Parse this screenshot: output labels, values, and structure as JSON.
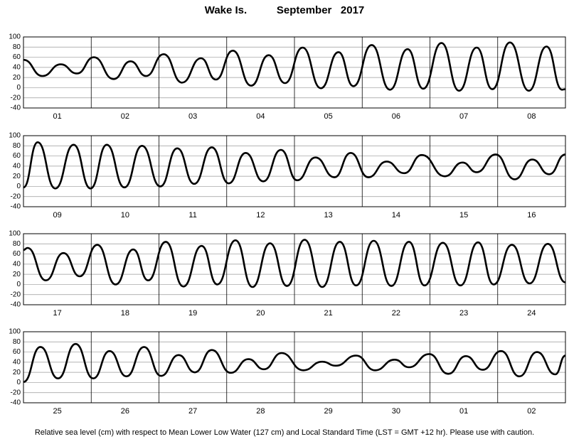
{
  "title": "Wake Is.          September   2017",
  "footnote": "Relative sea level (cm) with respect to Mean Lower Low Water (127 cm) and Local Standard Time (LST = GMT +12 hr). Please use with caution.",
  "chart_data": [
    {
      "type": "line",
      "categories": [
        "01",
        "02",
        "03",
        "04",
        "05",
        "06",
        "07",
        "08"
      ],
      "xlim": [
        0,
        8
      ],
      "ylim": [
        -40,
        100
      ],
      "yticks": [
        -40,
        -20,
        0,
        20,
        40,
        60,
        80,
        100
      ],
      "grid": true,
      "color": "#000000",
      "x": [
        0,
        0.28,
        0.55,
        0.79,
        1.04,
        1.33,
        1.58,
        1.81,
        2.07,
        2.34,
        2.62,
        2.84,
        3.09,
        3.36,
        3.62,
        3.86,
        4.12,
        4.39,
        4.65,
        4.87,
        5.14,
        5.41,
        5.67,
        5.9,
        6.17,
        6.43,
        6.69,
        6.92,
        7.18,
        7.46,
        7.72,
        7.95,
        8
      ],
      "values": [
        55,
        23,
        46,
        28,
        60,
        17,
        52,
        23,
        66,
        10,
        58,
        16,
        73,
        4,
        64,
        9,
        79,
        -1,
        70,
        3,
        84,
        -4,
        76,
        -2,
        88,
        -6,
        79,
        -3,
        89,
        -6,
        81,
        -4,
        -3
      ]
    },
    {
      "type": "line",
      "categories": [
        "09",
        "10",
        "11",
        "12",
        "13",
        "14",
        "15",
        "16"
      ],
      "xlim": [
        0,
        8
      ],
      "ylim": [
        -40,
        100
      ],
      "yticks": [
        -40,
        -20,
        0,
        20,
        40,
        60,
        80,
        100
      ],
      "grid": true,
      "color": "#000000",
      "x": [
        0,
        0.21,
        0.47,
        0.74,
        0.99,
        1.23,
        1.49,
        1.75,
        2.02,
        2.27,
        2.52,
        2.78,
        3.03,
        3.28,
        3.54,
        3.8,
        4.04,
        4.31,
        4.59,
        4.83,
        5.09,
        5.36,
        5.62,
        5.88,
        6.22,
        6.48,
        6.69,
        6.97,
        7.25,
        7.51,
        7.76,
        8
      ],
      "values": [
        -2,
        87,
        -4,
        82,
        -4,
        82,
        -2,
        80,
        0,
        75,
        5,
        77,
        6,
        66,
        10,
        72,
        12,
        57,
        18,
        66,
        18,
        49,
        26,
        62,
        20,
        47,
        28,
        63,
        14,
        53,
        24,
        63
      ]
    },
    {
      "type": "line",
      "categories": [
        "17",
        "18",
        "19",
        "20",
        "21",
        "22",
        "23",
        "24"
      ],
      "xlim": [
        0,
        8
      ],
      "ylim": [
        -40,
        100
      ],
      "yticks": [
        -40,
        -20,
        0,
        20,
        40,
        60,
        80,
        100
      ],
      "grid": true,
      "color": "#000000",
      "x": [
        0,
        0.06,
        0.33,
        0.59,
        0.83,
        1.09,
        1.36,
        1.62,
        1.84,
        2.1,
        2.36,
        2.63,
        2.86,
        3.13,
        3.38,
        3.64,
        3.89,
        4.15,
        4.41,
        4.67,
        4.91,
        5.17,
        5.43,
        5.69,
        5.92,
        6.19,
        6.45,
        6.71,
        6.94,
        7.21,
        7.47,
        7.74,
        8
      ],
      "values": [
        68,
        72,
        8,
        62,
        16,
        78,
        0,
        69,
        8,
        84,
        -4,
        76,
        0,
        87,
        -5,
        81,
        -3,
        88,
        -5,
        84,
        -2,
        86,
        -3,
        84,
        -2,
        82,
        -2,
        83,
        0,
        78,
        2,
        80,
        4
      ]
    },
    {
      "type": "line",
      "categories": [
        "25",
        "26",
        "27",
        "28",
        "29",
        "30",
        "01",
        "02"
      ],
      "xlim": [
        0,
        8
      ],
      "ylim": [
        -40,
        100
      ],
      "yticks": [
        -40,
        -20,
        0,
        20,
        40,
        60,
        80,
        100
      ],
      "grid": true,
      "color": "#000000",
      "x": [
        0,
        0.25,
        0.51,
        0.77,
        1.03,
        1.27,
        1.52,
        1.78,
        2.03,
        2.29,
        2.53,
        2.78,
        3.06,
        3.32,
        3.55,
        3.81,
        4.13,
        4.41,
        4.61,
        4.91,
        5.19,
        5.48,
        5.69,
        5.99,
        6.27,
        6.53,
        6.78,
        7.05,
        7.32,
        7.58,
        7.85,
        8
      ],
      "values": [
        1,
        70,
        8,
        76,
        8,
        62,
        12,
        70,
        13,
        54,
        20,
        64,
        19,
        46,
        26,
        58,
        24,
        41,
        33,
        53,
        24,
        45,
        30,
        56,
        17,
        52,
        25,
        62,
        12,
        60,
        16,
        53
      ]
    }
  ]
}
